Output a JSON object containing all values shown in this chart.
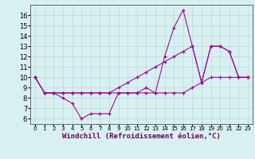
{
  "x": [
    0,
    1,
    2,
    3,
    4,
    5,
    6,
    7,
    8,
    9,
    10,
    11,
    12,
    13,
    14,
    15,
    16,
    17,
    18,
    19,
    20,
    21,
    22,
    23
  ],
  "line1": [
    10.0,
    8.5,
    8.5,
    8.0,
    7.5,
    6.0,
    6.5,
    6.5,
    6.5,
    8.5,
    8.5,
    8.5,
    9.0,
    8.5,
    12.0,
    14.8,
    16.5,
    13.0,
    9.5,
    13.0,
    13.0,
    12.5,
    10.0,
    10.0
  ],
  "line2": [
    10.0,
    8.5,
    8.5,
    8.5,
    8.5,
    8.5,
    8.5,
    8.5,
    8.5,
    9.0,
    9.5,
    10.0,
    10.5,
    11.0,
    11.5,
    12.0,
    12.5,
    13.0,
    9.5,
    13.0,
    13.0,
    12.5,
    10.0,
    10.0
  ],
  "line3": [
    10.0,
    8.5,
    8.5,
    8.5,
    8.5,
    8.5,
    8.5,
    8.5,
    8.5,
    8.5,
    8.5,
    8.5,
    8.5,
    8.5,
    8.5,
    8.5,
    8.5,
    9.0,
    9.5,
    10.0,
    10.0,
    10.0,
    10.0,
    10.0
  ],
  "line_color": "#990099",
  "bg_color": "#d8f0f0",
  "grid_color": "#b8dada",
  "xlabel": "Windchill (Refroidissement éolien,°C)",
  "yticks": [
    6,
    7,
    8,
    9,
    10,
    11,
    12,
    13,
    14,
    15,
    16
  ],
  "xticks": [
    0,
    1,
    2,
    3,
    4,
    5,
    6,
    7,
    8,
    9,
    10,
    11,
    12,
    13,
    14,
    15,
    16,
    17,
    18,
    19,
    20,
    21,
    22,
    23
  ],
  "ylim": [
    5.5,
    17.0
  ],
  "xlim": [
    -0.5,
    23.5
  ]
}
